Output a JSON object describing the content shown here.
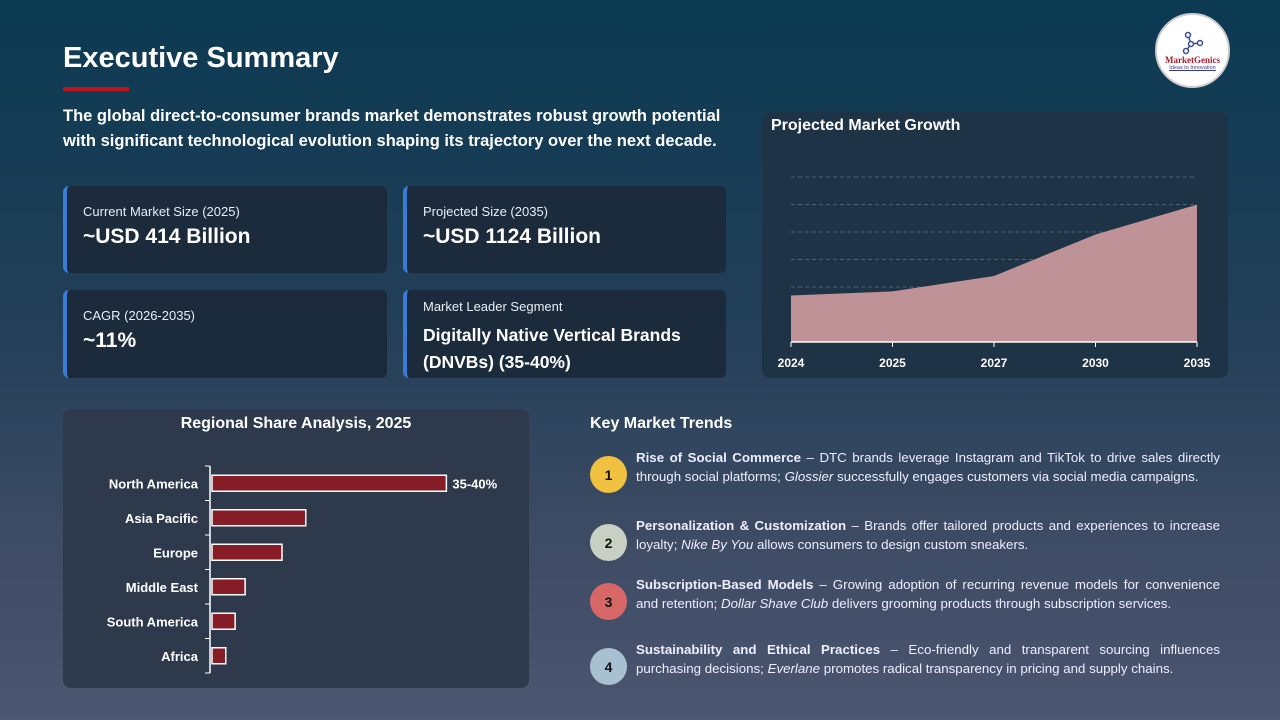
{
  "header": {
    "title": "Executive Summary",
    "intro": "The global direct-to-consumer brands  market demonstrates robust growth potential with significant technological evolution shaping its trajectory over the next decade.",
    "logo_name": "MarketGenics",
    "logo_tagline": "Ideas to Innovation"
  },
  "colors": {
    "accent": "#c0141c",
    "card_border": "#3a7bd5",
    "bar": "#851c26",
    "area": "#bf9297"
  },
  "cards": [
    {
      "label": "Current Market Size (2025)",
      "value": "~USD 414 Billion"
    },
    {
      "label": "Projected Size (2035)",
      "value": "~USD 1124 Billion"
    },
    {
      "label": "CAGR (2026-2035)",
      "value": "~11%"
    },
    {
      "label": "Market Leader Segment",
      "value": "Digitally Native Vertical Brands (DNVBs) (35-40%)"
    }
  ],
  "chart_data": [
    {
      "type": "area",
      "title": "Projected Market Growth",
      "categories": [
        "2024",
        "2025",
        "2027",
        "2030",
        "2035"
      ],
      "values": [
        380,
        414,
        540,
        880,
        1124
      ],
      "ylim": [
        0,
        1350
      ],
      "grid": true
    },
    {
      "type": "bar",
      "orientation": "horizontal",
      "title": "Regional Share Analysis, 2025",
      "categories": [
        "North America",
        "Asia Pacific",
        "Europe",
        "Middle East",
        "South America",
        "Africa"
      ],
      "values": [
        37.5,
        15,
        11.2,
        5.3,
        3.7,
        2.2
      ],
      "data_labels": [
        "35-40%",
        "",
        "",
        "",
        "",
        ""
      ],
      "xlim": [
        0,
        40
      ]
    }
  ],
  "trends": {
    "heading": "Key Market Trends",
    "items": [
      {
        "num": "1",
        "color": "#f0c040",
        "title": "Rise of Social Commerce",
        "pre": " – DTC brands leverage Instagram and TikTok to drive sales directly through social platforms; ",
        "brand": "Glossier",
        "post": " successfully engages customers via social media campaigns."
      },
      {
        "num": "2",
        "color": "#c8d0c4",
        "title": "Personalization & Customization",
        "pre": " – Brands offer tailored products and experiences to increase loyalty; ",
        "brand": "Nike By You",
        "post": " allows consumers to design custom sneakers."
      },
      {
        "num": "3",
        "color": "#d86868",
        "title": "Subscription-Based Models",
        "pre": " – Growing adoption of recurring revenue models for convenience and retention; ",
        "brand": "Dollar Shave Club",
        "post": " delivers grooming products through subscription services."
      },
      {
        "num": "4",
        "color": "#a8c0d0",
        "title": "Sustainability and Ethical Practices",
        "pre": " – Eco-friendly and transparent sourcing influences purchasing decisions; ",
        "brand": "Everlane",
        "post": " promotes  radical transparency in pricing and supply chains."
      }
    ]
  }
}
